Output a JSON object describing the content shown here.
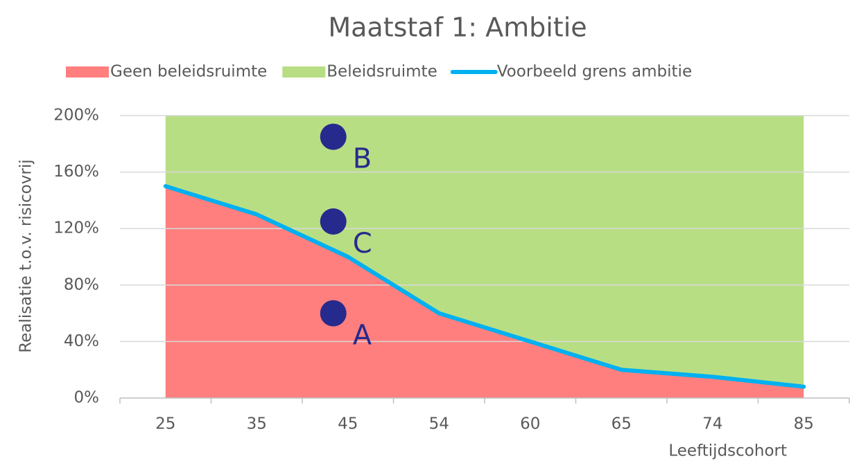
{
  "chart_data": {
    "type": "area",
    "title": "Maatstaf 1: Ambitie",
    "xlabel": "Leeftijdscohort",
    "ylabel": "Realisatie t.o.v. risicovrij",
    "categories": [
      "25",
      "35",
      "45",
      "54",
      "60",
      "65",
      "74",
      "85"
    ],
    "series": [
      {
        "name": "Geen beleidsruimte",
        "kind": "area",
        "color": "#ff7f7f",
        "values": [
          150,
          130,
          100,
          60,
          40,
          20,
          15,
          8
        ]
      },
      {
        "name": "Beleidsruimte",
        "kind": "area",
        "color": "#b8de84",
        "values": [
          50,
          70,
          100,
          140,
          160,
          180,
          185,
          192
        ]
      },
      {
        "name": "Voorbeeld grens ambitie",
        "kind": "line",
        "color": "#00b0f0",
        "values": [
          150,
          130,
          100,
          60,
          40,
          20,
          15,
          8
        ]
      }
    ],
    "points": [
      {
        "label": "A",
        "x": 1.84,
        "y": 60
      },
      {
        "label": "B",
        "x": 1.84,
        "y": 185
      },
      {
        "label": "C",
        "x": 1.84,
        "y": 125
      }
    ],
    "point_color": "#262a8c",
    "ylim": [
      0,
      200
    ],
    "yticks": [
      {
        "value": 0,
        "label": "0%"
      },
      {
        "value": 40,
        "label": "40%"
      },
      {
        "value": 80,
        "label": "80%"
      },
      {
        "value": 120,
        "label": "120%"
      },
      {
        "value": 160,
        "label": "160%"
      },
      {
        "value": 200,
        "label": "200%"
      }
    ],
    "grid": true,
    "legend": "top"
  }
}
